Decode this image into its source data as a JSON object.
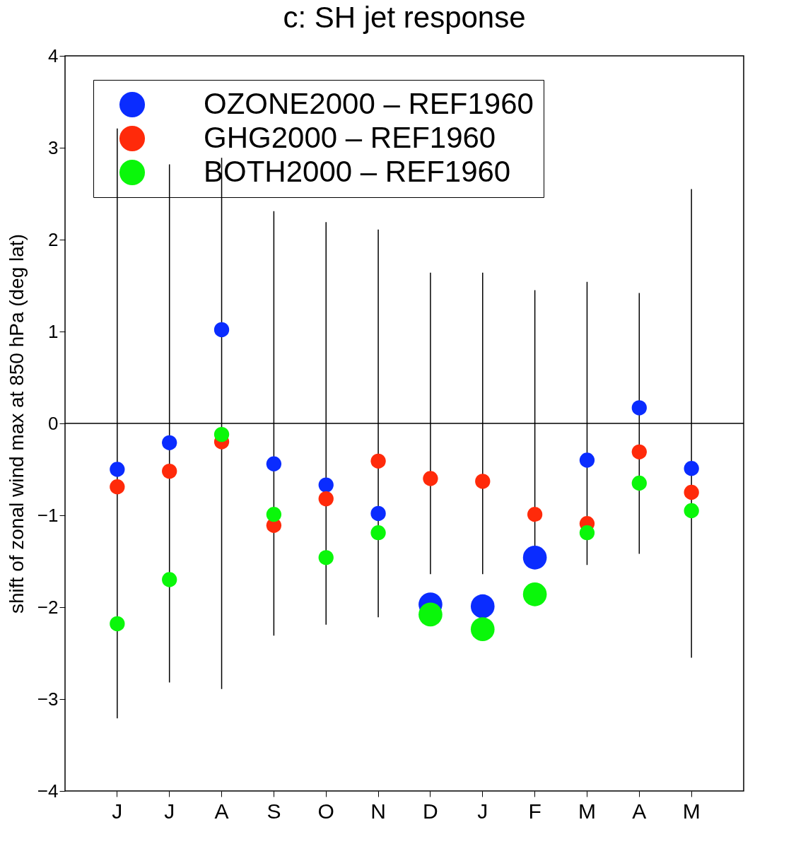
{
  "chart_data": {
    "type": "scatter",
    "title": "c:  SH jet response",
    "ylabel": "shift of zonal wind max at 850 hPa (deg lat)",
    "categories": [
      "J",
      "J",
      "A",
      "S",
      "O",
      "N",
      "D",
      "J",
      "F",
      "M",
      "A",
      "M"
    ],
    "series": [
      {
        "type": "bar",
        "color": "#000000",
        "base": [
          -3.21,
          -2.82,
          -2.89,
          -2.31,
          -2.19,
          -2.11,
          -1.64,
          -1.64,
          -1.45,
          -1.54,
          -1.42,
          -2.55
        ],
        "values": [
          6.42,
          5.64,
          5.78,
          4.62,
          4.38,
          4.22,
          3.28,
          3.28,
          2.9,
          3.08,
          2.84,
          5.1
        ]
      },
      {
        "type": "bubble",
        "name": "OZONE2000 – REF1960",
        "color": "#0a2cff",
        "values": [
          -0.5,
          -0.21,
          1.02,
          -0.44,
          -0.67,
          -0.98,
          -1.97,
          -1.99,
          -1.46,
          -0.4,
          0.17,
          -0.49
        ],
        "sizes": [
          0.4,
          0.4,
          0.4,
          0.4,
          0.4,
          0.4,
          1,
          1,
          1,
          0.4,
          0.4,
          0.4
        ]
      },
      {
        "type": "bubble",
        "name": "GHG2000 – REF1960",
        "color": "#ff2a0a",
        "values": [
          -0.69,
          -0.52,
          -0.2,
          -1.11,
          -0.82,
          -0.41,
          -0.6,
          -0.63,
          -0.99,
          -1.09,
          -0.31,
          -0.75
        ],
        "sizes": [
          0.4,
          0.4,
          0.4,
          0.4,
          0.4,
          0.4,
          0.4,
          0.4,
          0.4,
          0.4,
          0.4,
          0.4
        ]
      },
      {
        "type": "bubble",
        "name": "BOTH2000 – REF1960",
        "color": "#0af70a",
        "values": [
          -2.18,
          -1.7,
          -0.12,
          -0.99,
          -1.46,
          -1.19,
          -2.08,
          -2.24,
          -1.86,
          -1.19,
          -0.65,
          -0.95
        ],
        "sizes": [
          0.4,
          0.4,
          0.4,
          0.4,
          0.4,
          0.4,
          1,
          1,
          1,
          0.4,
          0.4,
          0.4
        ]
      }
    ],
    "ylim": [
      -4,
      4
    ],
    "yticks": [
      -4,
      -3,
      -2,
      -1,
      0,
      1,
      2,
      3,
      4
    ],
    "ref_lines": [
      {
        "axis": "y",
        "value": 0,
        "color": "#000000"
      }
    ],
    "legend": "top",
    "grid": false
  }
}
